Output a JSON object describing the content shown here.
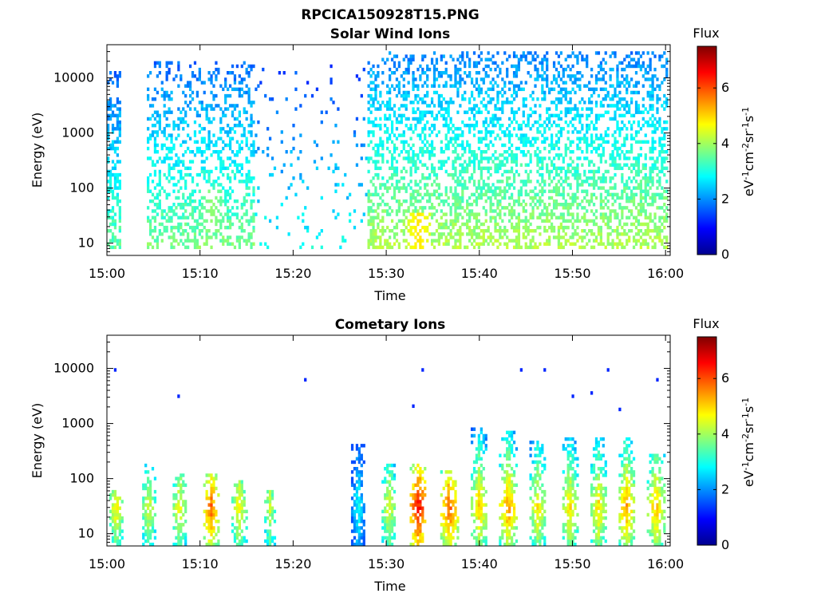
{
  "figure_title": "RPCICA150928T15.PNG",
  "colorbar": {
    "title": "Flux",
    "unit_label": "eV-1cm-2sr-1s-1",
    "range": [
      0,
      7.5
    ],
    "ticks": [
      "0",
      "2",
      "4",
      "6"
    ],
    "colormap": "jet"
  },
  "chart_data": [
    {
      "type": "heatmap",
      "title": "Solar Wind Ions",
      "xlabel": "Time",
      "ylabel": "Energy (eV)",
      "yscale": "log",
      "ylim": [
        6,
        40000
      ],
      "xlim_minutes": [
        0,
        60.5
      ],
      "x_tick_labels": [
        "15:00",
        "15:10",
        "15:20",
        "15:30",
        "15:40",
        "15:50",
        "16:00"
      ],
      "y_tick_labels": [
        "10",
        "100",
        "1000",
        "10000"
      ],
      "clim": [
        0,
        7.5
      ],
      "activity_profile": [
        {
          "from_min": 0,
          "to_min": 1.6,
          "density": 0.55,
          "e_min": 8,
          "e_max": 14000,
          "peak_flux": 3.6
        },
        {
          "from_min": 4.2,
          "to_min": 16,
          "density": 0.38,
          "e_min": 8,
          "e_max": 20000,
          "peak_flux": 3.8
        },
        {
          "from_min": 16,
          "to_min": 28,
          "density": 0.05,
          "e_min": 8,
          "e_max": 18000,
          "peak_flux": 3.0
        },
        {
          "from_min": 28,
          "to_min": 60.2,
          "density": 0.45,
          "e_min": 8,
          "e_max": 30000,
          "peak_flux": 4.2
        }
      ],
      "hot_spots": [
        {
          "t_min": 33.5,
          "e_ev": 15,
          "flux": 4.9
        },
        {
          "t_min": 11.3,
          "e_ev": 40,
          "flux": 3.9
        }
      ]
    },
    {
      "type": "heatmap",
      "title": "Cometary Ions",
      "xlabel": "Time",
      "ylabel": "Energy (eV)",
      "yscale": "log",
      "ylim": [
        6,
        40000
      ],
      "xlim_minutes": [
        0,
        60.5
      ],
      "x_tick_labels": [
        "15:00",
        "15:10",
        "15:20",
        "15:30",
        "15:40",
        "15:50",
        "16:00"
      ],
      "y_tick_labels": [
        "10",
        "100",
        "1000",
        "10000"
      ],
      "clim": [
        0,
        7.5
      ],
      "bursts": [
        {
          "t_min": 1.0,
          "width_min": 1.6,
          "e_top": 60,
          "peak_flux": 4.8
        },
        {
          "t_min": 4.5,
          "width_min": 1.6,
          "e_top": 200,
          "peak_flux": 4.5
        },
        {
          "t_min": 7.8,
          "width_min": 1.6,
          "e_top": 120,
          "peak_flux": 4.7
        },
        {
          "t_min": 11.2,
          "width_min": 1.6,
          "e_top": 130,
          "peak_flux": 5.9
        },
        {
          "t_min": 14.2,
          "width_min": 1.6,
          "e_top": 90,
          "peak_flux": 4.8
        },
        {
          "t_min": 17.5,
          "width_min": 1.2,
          "e_top": 60,
          "peak_flux": 4.4
        },
        {
          "t_min": 27.0,
          "width_min": 1.6,
          "e_top": 400,
          "peak_flux": 3.0
        },
        {
          "t_min": 30.3,
          "width_min": 1.6,
          "e_top": 200,
          "peak_flux": 4.6
        },
        {
          "t_min": 33.5,
          "width_min": 1.8,
          "e_top": 200,
          "peak_flux": 6.6
        },
        {
          "t_min": 36.8,
          "width_min": 1.8,
          "e_top": 150,
          "peak_flux": 6.0
        },
        {
          "t_min": 40.0,
          "width_min": 1.8,
          "e_top": 800,
          "peak_flux": 5.2
        },
        {
          "t_min": 43.1,
          "width_min": 1.8,
          "e_top": 700,
          "peak_flux": 5.6
        },
        {
          "t_min": 46.3,
          "width_min": 1.8,
          "e_top": 500,
          "peak_flux": 4.9
        },
        {
          "t_min": 49.7,
          "width_min": 1.8,
          "e_top": 600,
          "peak_flux": 5.0
        },
        {
          "t_min": 52.8,
          "width_min": 1.8,
          "e_top": 600,
          "peak_flux": 5.0
        },
        {
          "t_min": 55.8,
          "width_min": 1.8,
          "e_top": 600,
          "peak_flux": 5.5
        },
        {
          "t_min": 59.0,
          "width_min": 1.8,
          "e_top": 300,
          "peak_flux": 5.3
        }
      ],
      "sparse_points": [
        {
          "t_min": 1.0,
          "e_ev": 9000
        },
        {
          "t_min": 7.8,
          "e_ev": 3000
        },
        {
          "t_min": 21.2,
          "e_ev": 6500
        },
        {
          "t_min": 33.8,
          "e_ev": 9000
        },
        {
          "t_min": 44.5,
          "e_ev": 10000
        },
        {
          "t_min": 47.0,
          "e_ev": 10000
        },
        {
          "t_min": 52.0,
          "e_ev": 3500
        },
        {
          "t_min": 53.8,
          "e_ev": 10000
        },
        {
          "t_min": 59.2,
          "e_ev": 6000
        },
        {
          "t_min": 32.8,
          "e_ev": 2200
        },
        {
          "t_min": 50.0,
          "e_ev": 3000
        },
        {
          "t_min": 55.0,
          "e_ev": 1800
        }
      ]
    }
  ]
}
